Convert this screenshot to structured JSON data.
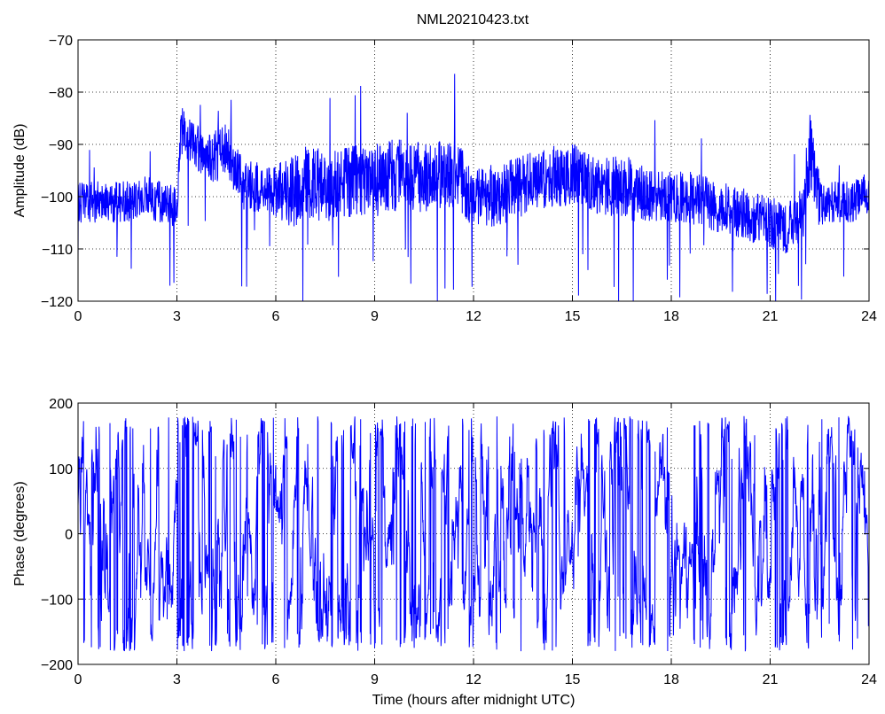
{
  "figure_title": "NML20210423.txt",
  "colors": {
    "series": "#0000ff",
    "axes": "#000000",
    "grid": "#000000"
  },
  "chart_data": [
    {
      "type": "line",
      "ylabel": "Amplitude (dB)",
      "xlabel": "",
      "xlim": [
        0,
        24
      ],
      "ylim": [
        -120,
        -70
      ],
      "xticks": [
        0,
        3,
        6,
        9,
        12,
        15,
        18,
        21,
        24
      ],
      "yticks": [
        -120,
        -110,
        -100,
        -90,
        -80,
        -70
      ],
      "grid": true,
      "series": [
        {
          "x": [
            0,
            0.5,
            1,
            1.5,
            2,
            2.5,
            3,
            3.1,
            3.5,
            4,
            4.5,
            5,
            5.5,
            6,
            6.5,
            7,
            7.5,
            8,
            8.5,
            9,
            9.5,
            10,
            10.5,
            11,
            11.5,
            12,
            12.5,
            13,
            13.5,
            14,
            14.5,
            15,
            15.5,
            16,
            16.5,
            17,
            17.5,
            18,
            18.5,
            19,
            19.5,
            20,
            20.5,
            21,
            21.5,
            22,
            22.2,
            22.5,
            23,
            23.5,
            24
          ],
          "y": [
            -101,
            -101,
            -101,
            -101,
            -100,
            -101,
            -102,
            -87,
            -90,
            -93,
            -91,
            -98,
            -98,
            -99,
            -99,
            -97,
            -98,
            -97,
            -97,
            -97,
            -96,
            -96,
            -96,
            -96,
            -96,
            -100,
            -100,
            -99,
            -98,
            -97,
            -96,
            -96,
            -97,
            -98,
            -98,
            -99,
            -100,
            -100,
            -100,
            -101,
            -102,
            -103,
            -104,
            -105,
            -106,
            -103,
            -91,
            -101,
            -101,
            -101,
            -99
          ],
          "amplitude_spread": [
            4,
            4,
            4,
            4,
            4,
            4,
            4,
            5,
            4,
            5,
            5,
            5,
            5,
            5,
            7,
            7,
            7,
            7,
            7,
            7,
            7,
            7,
            7,
            7,
            7,
            6,
            6,
            6,
            6,
            6,
            6,
            6,
            6,
            6,
            6,
            6,
            5,
            5,
            5,
            5,
            5,
            5,
            5,
            5,
            5,
            5,
            8,
            5,
            4,
            4,
            4
          ]
        }
      ]
    },
    {
      "type": "line",
      "ylabel": "Phase (degrees)",
      "xlabel": "Time (hours after midnight UTC)",
      "xlim": [
        0,
        24
      ],
      "ylim": [
        -200,
        200
      ],
      "xticks": [
        0,
        3,
        6,
        9,
        12,
        15,
        18,
        21,
        24
      ],
      "yticks": [
        -200,
        -100,
        0,
        100,
        200
      ],
      "grid": true,
      "series": [
        {
          "x": [
            0,
            1,
            2,
            3,
            4,
            5,
            6,
            7,
            8,
            9,
            10,
            11,
            12,
            13,
            14,
            15,
            16,
            17,
            18,
            19,
            20,
            21,
            22,
            23,
            24
          ],
          "y": [
            0,
            20,
            -100,
            0,
            0,
            0,
            0,
            0,
            0,
            0,
            0,
            100,
            0,
            0,
            0,
            0,
            0,
            0,
            0,
            0,
            0,
            0,
            0,
            0,
            0
          ],
          "wrap_range": [
            -180,
            180
          ]
        }
      ]
    }
  ]
}
